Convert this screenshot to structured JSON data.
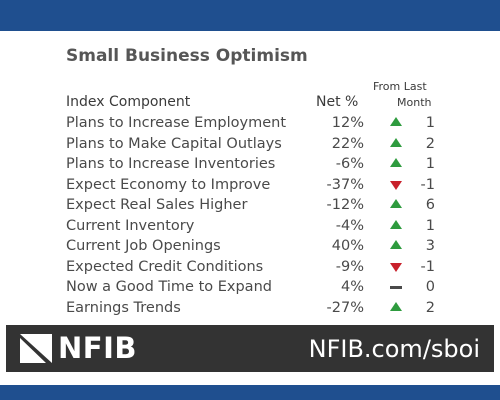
{
  "title": "Small Business Optimism",
  "table": {
    "headers": {
      "component": "Index Component",
      "net": "Net %",
      "change_line1": "From Last",
      "change_line2": "Month"
    },
    "rows": [
      {
        "label": "Plans to Increase Employment",
        "net": "12%",
        "direction": "up",
        "change": "1"
      },
      {
        "label": "Plans to Make Capital Outlays",
        "net": "22%",
        "direction": "up",
        "change": "2"
      },
      {
        "label": "Plans to Increase Inventories",
        "net": "-6%",
        "direction": "up",
        "change": "1"
      },
      {
        "label": "Expect Economy to Improve",
        "net": "-37%",
        "direction": "down",
        "change": "-1"
      },
      {
        "label": "Expect Real Sales Higher",
        "net": "-12%",
        "direction": "up",
        "change": "6"
      },
      {
        "label": "Current Inventory",
        "net": "-4%",
        "direction": "up",
        "change": "1"
      },
      {
        "label": "Current Job Openings",
        "net": "40%",
        "direction": "up",
        "change": "3"
      },
      {
        "label": "Expected Credit Conditions",
        "net": "-9%",
        "direction": "down",
        "change": "-1"
      },
      {
        "label": "Now a Good Time to Expand",
        "net": "4%",
        "direction": "flat",
        "change": "0"
      },
      {
        "label": "Earnings Trends",
        "net": "-27%",
        "direction": "up",
        "change": "2"
      }
    ]
  },
  "footer": {
    "logo": "NFIB",
    "url": "NFIB.com/sboi"
  },
  "colors": {
    "band": "#1f4f8f",
    "up": "#2e9b3e",
    "down": "#c8202b",
    "flat": "#4a4a4a",
    "footer_bg": "#333333"
  },
  "icons": {
    "up": "triangle-up-icon",
    "down": "triangle-down-icon",
    "flat": "dash-icon",
    "logo": "nfib-logo-mark"
  }
}
